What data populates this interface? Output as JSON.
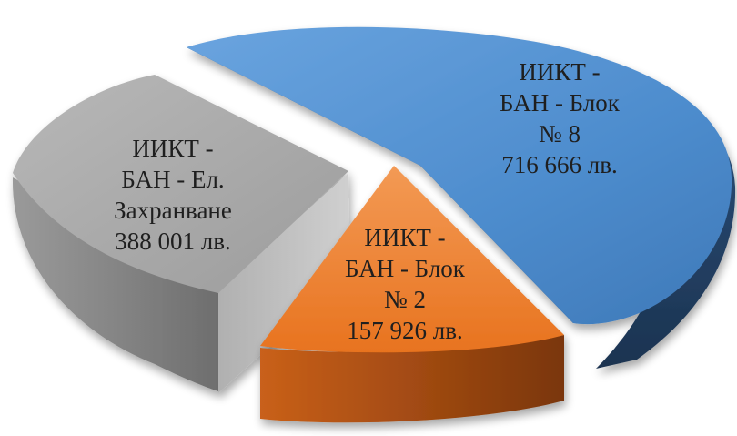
{
  "chart_data": {
    "type": "pie",
    "categories": [
      "ИИКТ - БАН - Блок № 8",
      "ИИКТ - БАН - Ел. Захранване",
      "ИИКТ - БАН - Блок № 2"
    ],
    "values": [
      716666,
      388001,
      157926
    ],
    "series": [
      {
        "values": [
          716666,
          388001,
          157926
        ],
        "colors": [
          "#4f8fd0",
          "#a6a6a6",
          "#ee7a2d"
        ]
      }
    ],
    "labels": [
      {
        "lines": [
          "ИИКТ -",
          "БАН - Блок",
          "№ 8",
          "716 666 лв."
        ],
        "color": "#4f8fd0"
      },
      {
        "lines": [
          "ИИКТ -",
          "БАН - Ел.",
          "Захранване",
          "388 001 лв."
        ],
        "color": "#a6a6a6"
      },
      {
        "lines": [
          "ИИКТ -",
          "БАН - Блок",
          "№ 2",
          "157 926 лв."
        ],
        "color": "#ee7a2d"
      }
    ],
    "style": "3d-exploded"
  }
}
